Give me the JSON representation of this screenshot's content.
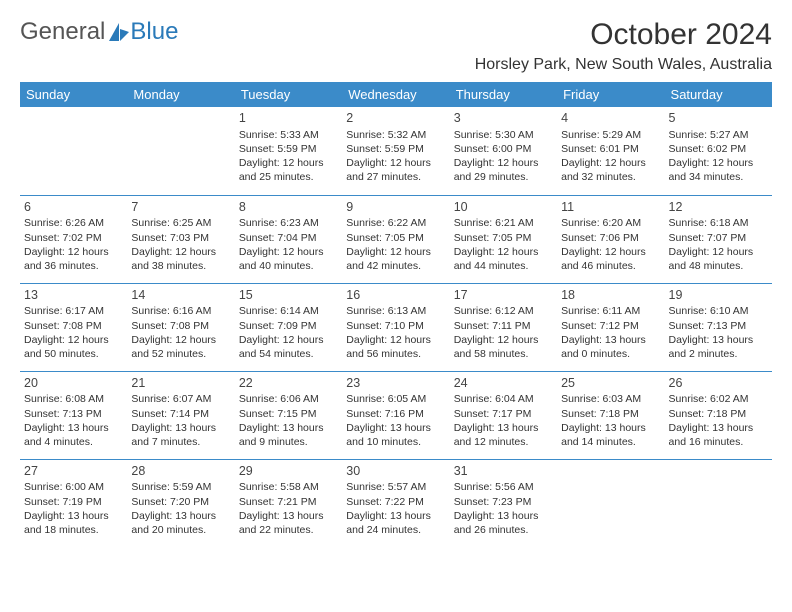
{
  "logo": {
    "textA": "General",
    "textB": "Blue",
    "iconColor": "#2a7ab9"
  },
  "header": {
    "title": "October 2024",
    "location": "Horsley Park, New South Wales, Australia"
  },
  "colors": {
    "headerBg": "#3b8bc9",
    "headerText": "#ffffff",
    "border": "#3b8bc9",
    "text": "#333333"
  },
  "dayNames": [
    "Sunday",
    "Monday",
    "Tuesday",
    "Wednesday",
    "Thursday",
    "Friday",
    "Saturday"
  ],
  "weeks": [
    [
      null,
      null,
      {
        "n": "1",
        "sr": "5:33 AM",
        "ss": "5:59 PM",
        "dl1": "12 hours",
        "dl2": "and 25 minutes."
      },
      {
        "n": "2",
        "sr": "5:32 AM",
        "ss": "5:59 PM",
        "dl1": "12 hours",
        "dl2": "and 27 minutes."
      },
      {
        "n": "3",
        "sr": "5:30 AM",
        "ss": "6:00 PM",
        "dl1": "12 hours",
        "dl2": "and 29 minutes."
      },
      {
        "n": "4",
        "sr": "5:29 AM",
        "ss": "6:01 PM",
        "dl1": "12 hours",
        "dl2": "and 32 minutes."
      },
      {
        "n": "5",
        "sr": "5:27 AM",
        "ss": "6:02 PM",
        "dl1": "12 hours",
        "dl2": "and 34 minutes."
      }
    ],
    [
      {
        "n": "6",
        "sr": "6:26 AM",
        "ss": "7:02 PM",
        "dl1": "12 hours",
        "dl2": "and 36 minutes."
      },
      {
        "n": "7",
        "sr": "6:25 AM",
        "ss": "7:03 PM",
        "dl1": "12 hours",
        "dl2": "and 38 minutes."
      },
      {
        "n": "8",
        "sr": "6:23 AM",
        "ss": "7:04 PM",
        "dl1": "12 hours",
        "dl2": "and 40 minutes."
      },
      {
        "n": "9",
        "sr": "6:22 AM",
        "ss": "7:05 PM",
        "dl1": "12 hours",
        "dl2": "and 42 minutes."
      },
      {
        "n": "10",
        "sr": "6:21 AM",
        "ss": "7:05 PM",
        "dl1": "12 hours",
        "dl2": "and 44 minutes."
      },
      {
        "n": "11",
        "sr": "6:20 AM",
        "ss": "7:06 PM",
        "dl1": "12 hours",
        "dl2": "and 46 minutes."
      },
      {
        "n": "12",
        "sr": "6:18 AM",
        "ss": "7:07 PM",
        "dl1": "12 hours",
        "dl2": "and 48 minutes."
      }
    ],
    [
      {
        "n": "13",
        "sr": "6:17 AM",
        "ss": "7:08 PM",
        "dl1": "12 hours",
        "dl2": "and 50 minutes."
      },
      {
        "n": "14",
        "sr": "6:16 AM",
        "ss": "7:08 PM",
        "dl1": "12 hours",
        "dl2": "and 52 minutes."
      },
      {
        "n": "15",
        "sr": "6:14 AM",
        "ss": "7:09 PM",
        "dl1": "12 hours",
        "dl2": "and 54 minutes."
      },
      {
        "n": "16",
        "sr": "6:13 AM",
        "ss": "7:10 PM",
        "dl1": "12 hours",
        "dl2": "and 56 minutes."
      },
      {
        "n": "17",
        "sr": "6:12 AM",
        "ss": "7:11 PM",
        "dl1": "12 hours",
        "dl2": "and 58 minutes."
      },
      {
        "n": "18",
        "sr": "6:11 AM",
        "ss": "7:12 PM",
        "dl1": "13 hours",
        "dl2": "and 0 minutes."
      },
      {
        "n": "19",
        "sr": "6:10 AM",
        "ss": "7:13 PM",
        "dl1": "13 hours",
        "dl2": "and 2 minutes."
      }
    ],
    [
      {
        "n": "20",
        "sr": "6:08 AM",
        "ss": "7:13 PM",
        "dl1": "13 hours",
        "dl2": "and 4 minutes."
      },
      {
        "n": "21",
        "sr": "6:07 AM",
        "ss": "7:14 PM",
        "dl1": "13 hours",
        "dl2": "and 7 minutes."
      },
      {
        "n": "22",
        "sr": "6:06 AM",
        "ss": "7:15 PM",
        "dl1": "13 hours",
        "dl2": "and 9 minutes."
      },
      {
        "n": "23",
        "sr": "6:05 AM",
        "ss": "7:16 PM",
        "dl1": "13 hours",
        "dl2": "and 10 minutes."
      },
      {
        "n": "24",
        "sr": "6:04 AM",
        "ss": "7:17 PM",
        "dl1": "13 hours",
        "dl2": "and 12 minutes."
      },
      {
        "n": "25",
        "sr": "6:03 AM",
        "ss": "7:18 PM",
        "dl1": "13 hours",
        "dl2": "and 14 minutes."
      },
      {
        "n": "26",
        "sr": "6:02 AM",
        "ss": "7:18 PM",
        "dl1": "13 hours",
        "dl2": "and 16 minutes."
      }
    ],
    [
      {
        "n": "27",
        "sr": "6:00 AM",
        "ss": "7:19 PM",
        "dl1": "13 hours",
        "dl2": "and 18 minutes."
      },
      {
        "n": "28",
        "sr": "5:59 AM",
        "ss": "7:20 PM",
        "dl1": "13 hours",
        "dl2": "and 20 minutes."
      },
      {
        "n": "29",
        "sr": "5:58 AM",
        "ss": "7:21 PM",
        "dl1": "13 hours",
        "dl2": "and 22 minutes."
      },
      {
        "n": "30",
        "sr": "5:57 AM",
        "ss": "7:22 PM",
        "dl1": "13 hours",
        "dl2": "and 24 minutes."
      },
      {
        "n": "31",
        "sr": "5:56 AM",
        "ss": "7:23 PM",
        "dl1": "13 hours",
        "dl2": "and 26 minutes."
      },
      null,
      null
    ]
  ],
  "labels": {
    "sunrise": "Sunrise: ",
    "sunset": "Sunset: ",
    "daylight": "Daylight: "
  }
}
